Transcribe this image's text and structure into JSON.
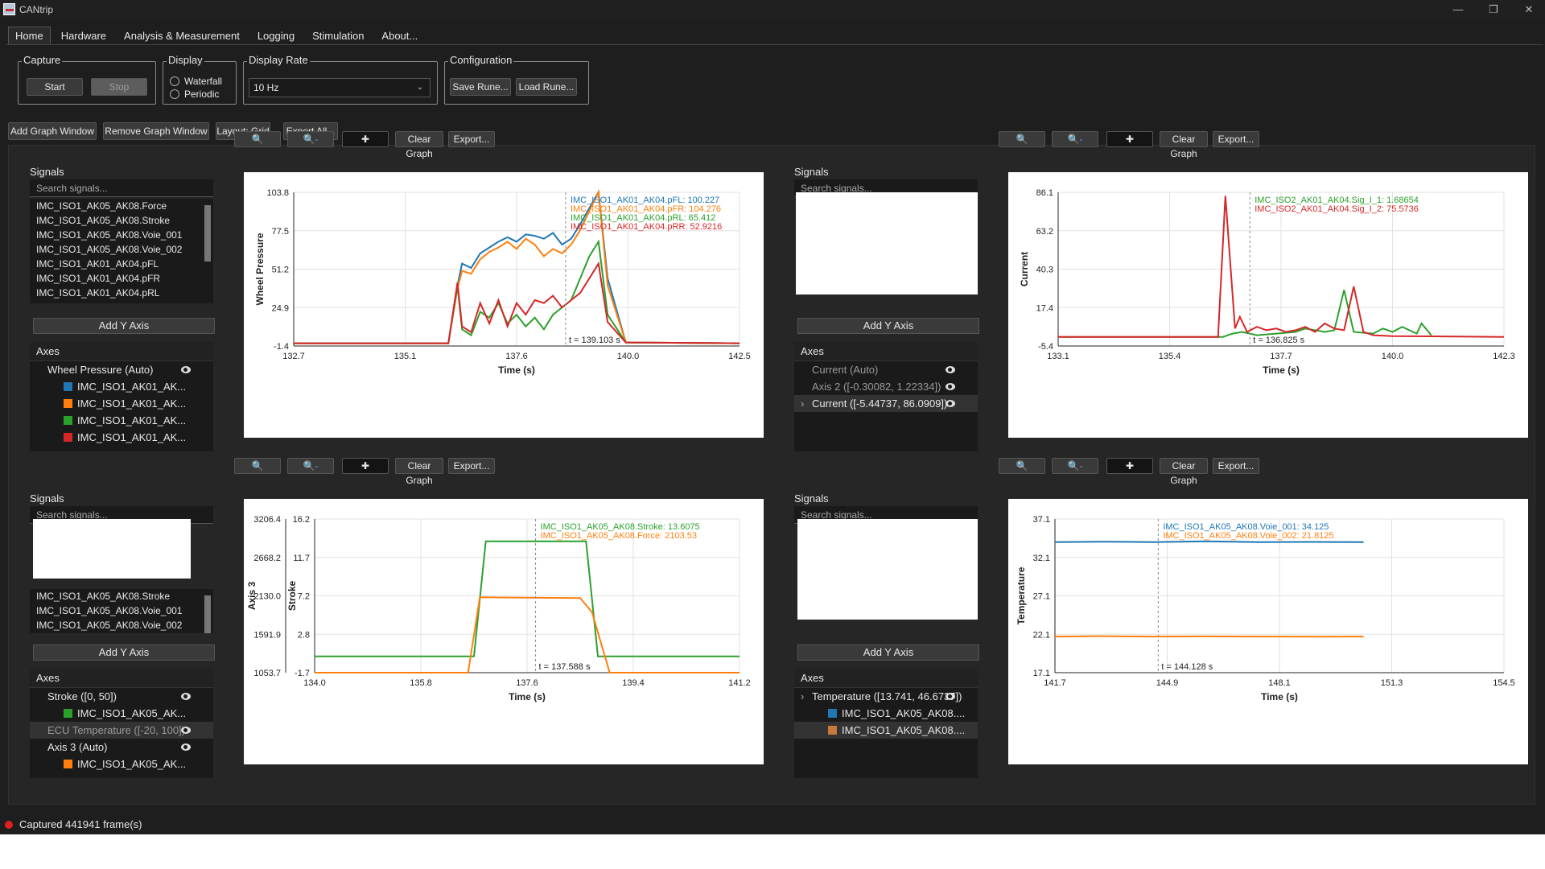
{
  "app": {
    "title": "CANtrip"
  },
  "window": {
    "minimize": "—",
    "restore": "❐",
    "close": "✕"
  },
  "menu": [
    "Home",
    "Hardware",
    "Analysis & Measurement",
    "Logging",
    "Stimulation",
    "About..."
  ],
  "ribbon": {
    "capture": {
      "title": "Capture",
      "start": "Start",
      "stop": "Stop"
    },
    "display": {
      "title": "Display",
      "waterfall": "Waterfall",
      "periodic": "Periodic"
    },
    "display_rate": {
      "title": "Display Rate",
      "value": "10 Hz"
    },
    "configuration": {
      "title": "Configuration",
      "save": "Save Rune...",
      "load": "Load Rune..."
    }
  },
  "toolbar": {
    "add": "Add Graph Window",
    "remove": "Remove Graph Window",
    "layout": "Layout: Grid",
    "export_all": "Export All..."
  },
  "graph_buttons": {
    "zoom_in": "🔍",
    "zoom_out": "🔍-",
    "pan": "✚",
    "clear": "Clear Graph",
    "export": "Export..."
  },
  "common": {
    "signals": "Signals",
    "search_placeholder": "Search signals...",
    "add_y_axis": "Add Y Axis",
    "axes": "Axes",
    "time_label": "Time (s)"
  },
  "panels": [
    {
      "signals": [
        "IMC_ISO1_AK05_AK08.Force",
        "IMC_ISO1_AK05_AK08.Stroke",
        "IMC_ISO1_AK05_AK08.Voie_001",
        "IMC_ISO1_AK05_AK08.Voie_002",
        "IMC_ISO1_AK01_AK04.pFL",
        "IMC_ISO1_AK01_AK04.pFR",
        "IMC_ISO1_AK01_AK04.pRL",
        "IMC_ISO1_AK01_AK04.pRR"
      ],
      "axes": [
        {
          "label": "Wheel Pressure (Auto)",
          "eye": true,
          "indent": 0
        },
        {
          "label": "IMC_ISO1_AK01_AK...",
          "color": "#1f77b4",
          "indent": 1
        },
        {
          "label": "IMC_ISO1_AK01_AK...",
          "color": "#ff7f0e",
          "indent": 1
        },
        {
          "label": "IMC_ISO1_AK01_AK...",
          "color": "#2ca02c",
          "indent": 1
        },
        {
          "label": "IMC_ISO1_AK01_AK...",
          "color": "#d62728",
          "indent": 1
        }
      ],
      "plot": {
        "ylabel": "Wheel Pressure",
        "yticks": [
          "103.8",
          "77.5",
          "51.2",
          "24.9",
          "-1.4"
        ],
        "xticks": [
          "132.7",
          "135.1",
          "137.6",
          "140.0",
          "142.5"
        ],
        "cursor": "t = 139.103 s",
        "legend": [
          {
            "text": "IMC_ISO1_AK01_AK04.pFL: 100.227",
            "color": "#1f77b4"
          },
          {
            "text": "IMC_ISO1_AK01_AK04.pFR: 104.276",
            "color": "#ff7f0e"
          },
          {
            "text": "IMC_ISO1_AK01_AK04.pRL: 65.412",
            "color": "#2ca02c"
          },
          {
            "text": "IMC_ISO1_AK01_AK04.pRR: 52.9216",
            "color": "#d62728"
          }
        ]
      }
    },
    {
      "signals": [],
      "axes": [
        {
          "label": "Current (Auto)",
          "eye": true,
          "indent": 0,
          "dim": true
        },
        {
          "label": "Axis 2 ([-0.30082, 1.22334])",
          "eye": true,
          "indent": 0,
          "dim": true
        },
        {
          "label": "Current ([-5.44737, 86.0909])",
          "eye": true,
          "indent": 0,
          "sel": true,
          "chev": true
        }
      ],
      "plot": {
        "ylabel": "Current",
        "yticks": [
          "86.1",
          "63.2",
          "40.3",
          "17.4",
          "-5.4"
        ],
        "xticks": [
          "133.1",
          "135.4",
          "137.7",
          "140.0",
          "142.3"
        ],
        "cursor": "t = 136.825 s",
        "legend": [
          {
            "text": "IMC_ISO2_AK01_AK04.Sig_I_1: 1.68654",
            "color": "#2ca02c"
          },
          {
            "text": "IMC_ISO2_AK01_AK04.Sig_I_2: 75.5736",
            "color": "#d62728"
          }
        ]
      }
    },
    {
      "signals": [
        "IMC_ISO1_AK05_AK08.Stroke",
        "IMC_ISO1_AK05_AK08.Voie_001",
        "IMC_ISO1_AK05_AK08.Voie_002"
      ],
      "axes": [
        {
          "label": "Stroke ([0, 50])",
          "eye": true,
          "indent": 0
        },
        {
          "label": "IMC_ISO1_AK05_AK...",
          "color": "#2ca02c",
          "indent": 1
        },
        {
          "label": "ECU Temperature ([-20, 100])",
          "eye": true,
          "indent": 0,
          "dim": true,
          "sel": true
        },
        {
          "label": "Axis 3 (Auto)",
          "eye": true,
          "indent": 0
        },
        {
          "label": "IMC_ISO1_AK05_AK...",
          "color": "#ff7f0e",
          "indent": 1
        }
      ],
      "plot": {
        "ylabel": "Stroke",
        "ylabel2": "Axis 3",
        "yticks": [
          "16.2",
          "11.7",
          "7.2",
          "2.8",
          "-1.7"
        ],
        "yticks2": [
          "3206.4",
          "2668.2",
          "2130.0",
          "1591.9",
          "1053.7"
        ],
        "xticks": [
          "134.0",
          "135.8",
          "137.6",
          "139.4",
          "141.2"
        ],
        "cursor": "t = 137.588 s",
        "legend": [
          {
            "text": "IMC_ISO1_AK05_AK08.Stroke: 13.6075",
            "color": "#2ca02c"
          },
          {
            "text": "IMC_ISO1_AK05_AK08.Force: 2103.53",
            "color": "#ff7f0e"
          }
        ]
      }
    },
    {
      "signals": [],
      "axes": [
        {
          "label": "Temperature ([13.741, 46.6737])",
          "eye": true,
          "indent": 0,
          "chev": true
        },
        {
          "label": "IMC_ISO1_AK05_AK08....",
          "color": "#1f77b4",
          "indent": 1
        },
        {
          "label": "IMC_ISO1_AK05_AK08....",
          "color": "#c87a3a",
          "indent": 1,
          "sel": true
        }
      ],
      "plot": {
        "ylabel": "Temperature",
        "yticks": [
          "37.1",
          "32.1",
          "27.1",
          "22.1",
          "17.1"
        ],
        "xticks": [
          "141.7",
          "144.9",
          "148.1",
          "151.3",
          "154.5"
        ],
        "cursor": "t = 144.128 s",
        "legend": [
          {
            "text": "IMC_ISO1_AK05_AK08.Voie_001: 34.125",
            "color": "#1f77b4"
          },
          {
            "text": "IMC_ISO1_AK05_AK08.Voie_002: 21.8125",
            "color": "#ff7f0e"
          }
        ]
      }
    }
  ],
  "chart_data": [
    {
      "type": "line",
      "ylabel": "Wheel Pressure",
      "xlabel": "Time (s)",
      "xlim": [
        132.7,
        142.5
      ],
      "ylim": [
        -1.4,
        103.8
      ],
      "series": [
        {
          "name": "IMC_ISO1_AK01_AK04.pFL",
          "color": "#1f77b4",
          "x": [
            132.7,
            136.1,
            136.3,
            136.4,
            136.6,
            136.8,
            137.0,
            137.2,
            137.4,
            137.6,
            137.8,
            138.0,
            138.2,
            138.4,
            138.6,
            138.8,
            139.0,
            139.2,
            139.4,
            139.6,
            140.0,
            142.5
          ],
          "y": [
            0.5,
            0.5,
            40,
            55,
            52,
            62,
            66,
            70,
            73,
            70,
            75,
            74,
            72,
            76,
            68,
            72,
            82,
            93,
            104,
            45,
            1,
            0.5
          ]
        },
        {
          "name": "IMC_ISO1_AK01_AK04.pFR",
          "color": "#ff7f0e",
          "x": [
            132.7,
            136.1,
            136.3,
            136.4,
            136.6,
            136.8,
            137.0,
            137.2,
            137.4,
            137.6,
            137.8,
            138.0,
            138.2,
            138.4,
            138.6,
            138.8,
            139.0,
            139.2,
            139.4,
            139.6,
            140.0,
            142.5
          ],
          "y": [
            0.5,
            0.5,
            38,
            50,
            48,
            58,
            63,
            66,
            70,
            65,
            72,
            68,
            60,
            65,
            62,
            68,
            78,
            91,
            104,
            40,
            1,
            0.5
          ]
        },
        {
          "name": "IMC_ISO1_AK01_AK04.pRL",
          "color": "#2ca02c",
          "x": [
            132.7,
            136.1,
            136.3,
            136.4,
            136.6,
            136.8,
            137.0,
            137.2,
            137.4,
            137.6,
            137.8,
            138.0,
            138.2,
            138.4,
            138.6,
            138.8,
            139.0,
            139.2,
            139.4,
            139.6,
            140.0,
            142.5
          ],
          "y": [
            0.5,
            0.5,
            40,
            10,
            6,
            22,
            18,
            28,
            14,
            20,
            12,
            18,
            10,
            20,
            25,
            30,
            45,
            60,
            70,
            20,
            1,
            0.5
          ]
        },
        {
          "name": "IMC_ISO1_AK01_AK04.pRR",
          "color": "#d62728",
          "x": [
            132.7,
            136.1,
            136.3,
            136.4,
            136.6,
            136.8,
            137.0,
            137.2,
            137.4,
            137.6,
            137.8,
            138.0,
            138.2,
            138.4,
            138.6,
            138.8,
            139.0,
            139.2,
            139.4,
            139.6,
            140.0,
            142.5
          ],
          "y": [
            0.5,
            0.5,
            42,
            12,
            8,
            28,
            14,
            30,
            12,
            28,
            20,
            30,
            28,
            33,
            25,
            30,
            35,
            45,
            55,
            15,
            1,
            0.5
          ]
        }
      ]
    },
    {
      "type": "line",
      "ylabel": "Current",
      "xlabel": "Time (s)",
      "xlim": [
        133.1,
        142.3
      ],
      "ylim": [
        -5.4,
        86.1
      ],
      "series": [
        {
          "name": "IMC_ISO2_AK01_AK04.Sig_I_1",
          "color": "#2ca02c",
          "x": [
            133.1,
            136.5,
            136.7,
            136.9,
            137.2,
            137.6,
            138.0,
            138.2,
            138.6,
            138.8,
            139.0,
            139.2,
            139.6,
            139.8,
            140.0,
            140.2,
            140.5,
            140.6,
            140.8
          ],
          "y": [
            0,
            0,
            2,
            3,
            1,
            2,
            3,
            5,
            3,
            4,
            28,
            3,
            2,
            5,
            3,
            6,
            2,
            8,
            1
          ]
        },
        {
          "name": "IMC_ISO2_AK01_AK04.Sig_I_2",
          "color": "#d62728",
          "x": [
            133.1,
            136.4,
            136.55,
            136.75,
            136.85,
            137.0,
            137.2,
            137.4,
            137.6,
            137.8,
            138.0,
            138.2,
            138.4,
            138.6,
            138.8,
            139.0,
            139.2,
            139.4,
            139.6,
            140.0,
            142.3
          ],
          "y": [
            0,
            0,
            84,
            5,
            12,
            3,
            6,
            4,
            5,
            3,
            4,
            6,
            3,
            8,
            5,
            4,
            30,
            3,
            1,
            0.5,
            0
          ]
        }
      ]
    },
    {
      "type": "line",
      "ylabel": "Stroke",
      "xlabel": "Time (s)",
      "xlim": [
        134.0,
        141.2
      ],
      "ylim": [
        -1.7,
        16.2
      ],
      "series": [
        {
          "name": "IMC_ISO1_AK05_AK08.Stroke",
          "color": "#2ca02c",
          "x": [
            134.0,
            136.7,
            136.9,
            138.6,
            138.8,
            141.2
          ],
          "y": [
            0.2,
            0.2,
            13.6,
            13.6,
            0.2,
            0.2
          ]
        },
        {
          "name": "IMC_ISO1_AK05_AK08.Force",
          "color": "#ff7f0e",
          "axis": "Axis 3",
          "x": [
            134.0,
            136.6,
            136.8,
            138.5,
            138.7,
            139.0,
            141.2
          ],
          "y": [
            1053.7,
            1053.7,
            2110,
            2100,
            1900,
            1053.7,
            1053.7
          ]
        }
      ]
    },
    {
      "type": "line",
      "ylabel": "Temperature",
      "xlabel": "Time (s)",
      "xlim": [
        141.7,
        154.5
      ],
      "ylim": [
        17.1,
        37.1
      ],
      "series": [
        {
          "name": "IMC_ISO1_AK05_AK08.Voie_001",
          "color": "#1f77b4",
          "x": [
            141.7,
            143.0,
            144.5,
            146.0,
            147.5,
            149.0,
            150.5
          ],
          "y": [
            34.1,
            34.15,
            34.1,
            34.2,
            34.1,
            34.12,
            34.1
          ]
        },
        {
          "name": "IMC_ISO1_AK05_AK08.Voie_002",
          "color": "#ff7f0e",
          "x": [
            141.7,
            143.0,
            144.5,
            146.0,
            147.5,
            149.0,
            150.5
          ],
          "y": [
            21.8,
            21.85,
            21.8,
            21.82,
            21.8,
            21.78,
            21.8
          ]
        }
      ]
    }
  ],
  "status": {
    "text": "Captured 441941 frame(s)"
  }
}
